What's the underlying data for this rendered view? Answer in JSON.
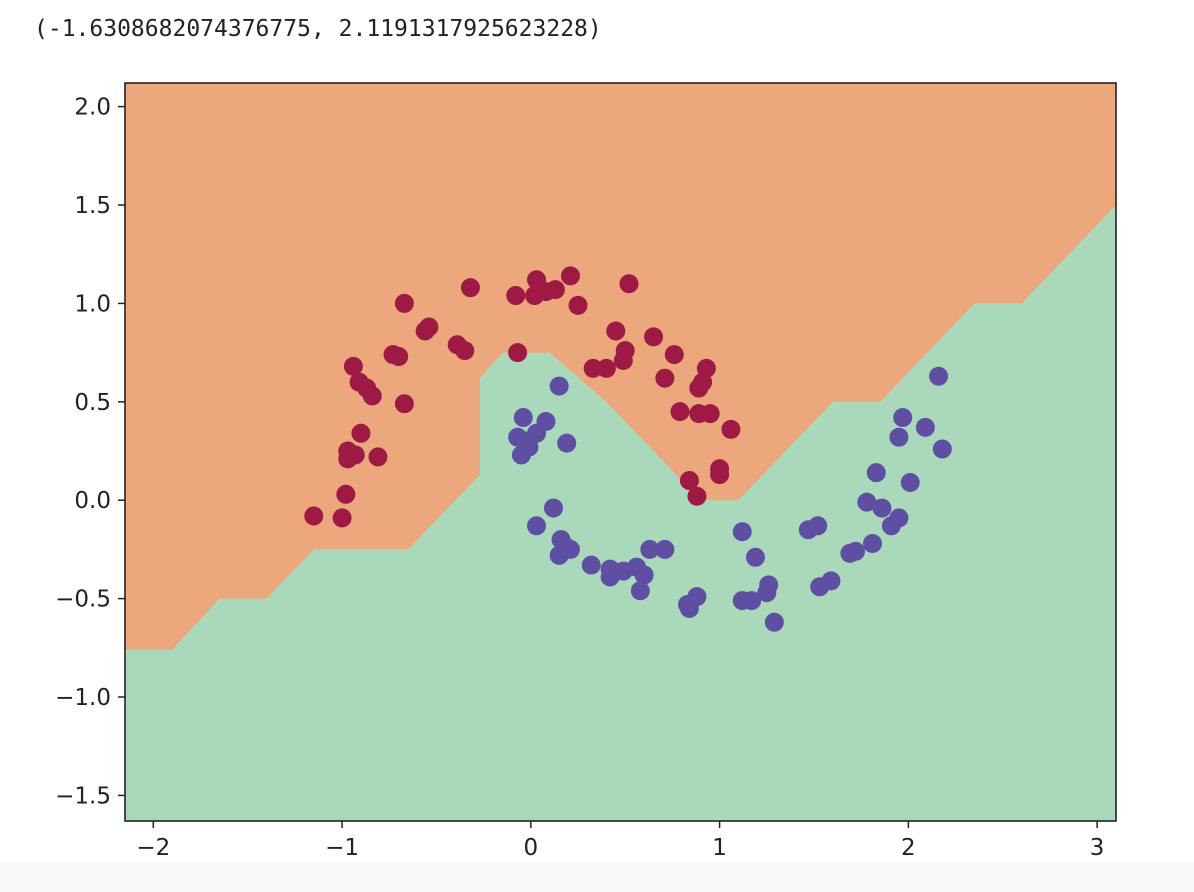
{
  "output_text": "(-1.6308682074376775, 2.1191317925623228)",
  "chart_data": {
    "type": "scatter",
    "title": "",
    "xlabel": "",
    "ylabel": "",
    "xlim": [
      -2.15,
      3.1
    ],
    "ylim": [
      -1.63,
      2.12
    ],
    "x_ticks": [
      -2,
      -1,
      0,
      1,
      2,
      3
    ],
    "x_tick_labels": [
      "−2",
      "−1",
      "0",
      "1",
      "2",
      "3"
    ],
    "y_ticks": [
      -1.5,
      -1.0,
      -0.5,
      0.0,
      0.5,
      1.0,
      1.5,
      2.0
    ],
    "y_tick_labels": [
      "−1.5",
      "−1.0",
      "−0.5",
      "0.0",
      "0.5",
      "1.0",
      "1.5",
      "2.0"
    ],
    "grid": false,
    "decision_regions": {
      "class_0_color": "#ECA77C",
      "class_1_color": "#AAD8BB",
      "boundary": [
        [
          -2.15,
          -0.76
        ],
        [
          -1.9,
          -0.76
        ],
        [
          -1.65,
          -0.5
        ],
        [
          -1.4,
          -0.5
        ],
        [
          -1.15,
          -0.25
        ],
        [
          -0.65,
          -0.25
        ],
        [
          -0.4,
          0.0
        ],
        [
          -0.27,
          0.13
        ],
        [
          -0.27,
          0.62
        ],
        [
          -0.15,
          0.75
        ],
        [
          0.1,
          0.75
        ],
        [
          0.4,
          0.5
        ],
        [
          0.65,
          0.25
        ],
        [
          0.9,
          0.0
        ],
        [
          1.1,
          0.0
        ],
        [
          1.35,
          0.25
        ],
        [
          1.6,
          0.5
        ],
        [
          1.85,
          0.5
        ],
        [
          2.1,
          0.75
        ],
        [
          2.35,
          1.0
        ],
        [
          2.6,
          1.0
        ],
        [
          2.85,
          1.25
        ],
        [
          3.1,
          1.5
        ]
      ]
    },
    "series": [
      {
        "class": 0,
        "color": "#9E1A45",
        "points": [
          [
            -1.15,
            -0.08
          ],
          [
            -1.0,
            -0.09
          ],
          [
            -0.98,
            0.03
          ],
          [
            -0.97,
            0.25
          ],
          [
            -0.97,
            0.21
          ],
          [
            -0.93,
            0.23
          ],
          [
            -0.9,
            0.34
          ],
          [
            -0.94,
            0.68
          ],
          [
            -0.91,
            0.6
          ],
          [
            -0.87,
            0.57
          ],
          [
            -0.84,
            0.53
          ],
          [
            -0.81,
            0.22
          ],
          [
            -0.73,
            0.74
          ],
          [
            -0.7,
            0.73
          ],
          [
            -0.67,
            0.49
          ],
          [
            -0.67,
            1.0
          ],
          [
            -0.56,
            0.86
          ],
          [
            -0.54,
            0.88
          ],
          [
            -0.39,
            0.79
          ],
          [
            -0.35,
            0.76
          ],
          [
            -0.32,
            1.08
          ],
          [
            -0.08,
            1.04
          ],
          [
            -0.07,
            0.75
          ],
          [
            0.02,
            1.04
          ],
          [
            0.03,
            1.12
          ],
          [
            0.08,
            1.06
          ],
          [
            0.13,
            1.07
          ],
          [
            0.21,
            1.14
          ],
          [
            0.25,
            0.99
          ],
          [
            0.33,
            0.67
          ],
          [
            0.4,
            0.67
          ],
          [
            0.45,
            0.86
          ],
          [
            0.49,
            0.71
          ],
          [
            0.5,
            0.76
          ],
          [
            0.52,
            1.1
          ],
          [
            0.65,
            0.83
          ],
          [
            0.71,
            0.62
          ],
          [
            0.76,
            0.74
          ],
          [
            0.79,
            0.45
          ],
          [
            0.84,
            0.1
          ],
          [
            0.88,
            0.02
          ],
          [
            0.89,
            0.44
          ],
          [
            0.89,
            0.57
          ],
          [
            0.91,
            0.6
          ],
          [
            0.93,
            0.67
          ],
          [
            0.95,
            0.44
          ],
          [
            1.0,
            0.13
          ],
          [
            1.0,
            0.16
          ],
          [
            1.06,
            0.36
          ]
        ]
      },
      {
        "class": 1,
        "color": "#5E4FA2",
        "points": [
          [
            -0.07,
            0.32
          ],
          [
            -0.05,
            0.23
          ],
          [
            -0.04,
            0.42
          ],
          [
            -0.03,
            0.3
          ],
          [
            -0.01,
            0.27
          ],
          [
            0.03,
            0.34
          ],
          [
            0.03,
            -0.13
          ],
          [
            0.08,
            0.4
          ],
          [
            0.12,
            -0.04
          ],
          [
            0.15,
            -0.28
          ],
          [
            0.15,
            0.58
          ],
          [
            0.16,
            -0.2
          ],
          [
            0.19,
            -0.24
          ],
          [
            0.19,
            0.29
          ],
          [
            0.21,
            -0.25
          ],
          [
            0.32,
            -0.33
          ],
          [
            0.42,
            -0.39
          ],
          [
            0.42,
            -0.35
          ],
          [
            0.49,
            -0.36
          ],
          [
            0.56,
            -0.34
          ],
          [
            0.58,
            -0.46
          ],
          [
            0.6,
            -0.38
          ],
          [
            0.63,
            -0.25
          ],
          [
            0.71,
            -0.25
          ],
          [
            0.83,
            -0.53
          ],
          [
            0.84,
            -0.55
          ],
          [
            0.88,
            -0.49
          ],
          [
            1.12,
            -0.16
          ],
          [
            1.12,
            -0.51
          ],
          [
            1.17,
            -0.51
          ],
          [
            1.19,
            -0.29
          ],
          [
            1.25,
            -0.47
          ],
          [
            1.26,
            -0.43
          ],
          [
            1.29,
            -0.62
          ],
          [
            1.47,
            -0.15
          ],
          [
            1.52,
            -0.13
          ],
          [
            1.53,
            -0.44
          ],
          [
            1.59,
            -0.41
          ],
          [
            1.69,
            -0.27
          ],
          [
            1.72,
            -0.26
          ],
          [
            1.78,
            -0.01
          ],
          [
            1.81,
            -0.22
          ],
          [
            1.83,
            0.14
          ],
          [
            1.86,
            -0.04
          ],
          [
            1.91,
            -0.13
          ],
          [
            1.95,
            0.32
          ],
          [
            1.95,
            -0.09
          ],
          [
            1.97,
            0.42
          ],
          [
            2.01,
            0.09
          ],
          [
            2.09,
            0.37
          ],
          [
            2.16,
            0.63
          ],
          [
            2.18,
            0.26
          ]
        ]
      }
    ]
  }
}
